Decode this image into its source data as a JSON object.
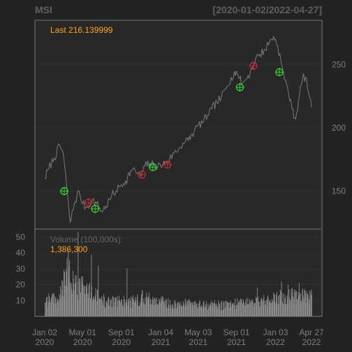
{
  "chart_data": [
    {
      "type": "line",
      "title": "MSI",
      "date_range": "[2020-01-02/2022-04-27]",
      "last_label": "Last 216.139999",
      "ylim": [
        120,
        285
      ],
      "y_ticks": [
        150,
        200,
        250
      ],
      "y_tick_labels": [
        "150",
        "200",
        "250"
      ],
      "x_ticks": [
        {
          "label": "Jan 02\n2020",
          "date": "2020-01-02"
        },
        {
          "label": "May 01\n2020",
          "date": "2020-05-01"
        },
        {
          "label": "Sep 01\n2020",
          "date": "2020-09-01"
        },
        {
          "label": "Jan 04\n2021",
          "date": "2021-01-04"
        },
        {
          "label": "May 03\n2021",
          "date": "2021-05-03"
        },
        {
          "label": "Sep 01\n2021",
          "date": "2021-09-01"
        },
        {
          "label": "Jan 03\n2022",
          "date": "2022-01-03"
        },
        {
          "label": "Apr 27\n2022",
          "date": "2022-04-27"
        }
      ],
      "series": [
        {
          "color": "#7a7a7a",
          "points": [
            [
              "2020-01-02",
              160
            ],
            [
              "2020-01-15",
              168
            ],
            [
              "2020-02-01",
              176
            ],
            [
              "2020-02-18",
              186
            ],
            [
              "2020-03-01",
              180
            ],
            [
              "2020-03-12",
              152
            ],
            [
              "2020-03-23",
              125
            ],
            [
              "2020-04-05",
              140
            ],
            [
              "2020-04-20",
              150
            ],
            [
              "2020-05-01",
              140
            ],
            [
              "2020-05-15",
              137
            ],
            [
              "2020-06-01",
              143
            ],
            [
              "2020-06-15",
              140
            ],
            [
              "2020-06-30",
              134
            ],
            [
              "2020-07-15",
              138
            ],
            [
              "2020-08-01",
              146
            ],
            [
              "2020-08-15",
              150
            ],
            [
              "2020-09-01",
              155
            ],
            [
              "2020-09-15",
              158
            ],
            [
              "2020-10-01",
              166
            ],
            [
              "2020-10-15",
              166
            ],
            [
              "2020-11-01",
              162
            ],
            [
              "2020-11-15",
              170
            ],
            [
              "2020-12-01",
              172
            ],
            [
              "2020-12-15",
              170
            ],
            [
              "2021-01-04",
              170
            ],
            [
              "2021-01-20",
              173
            ],
            [
              "2021-02-01",
              175
            ],
            [
              "2021-02-15",
              180
            ],
            [
              "2021-03-01",
              183
            ],
            [
              "2021-03-15",
              188
            ],
            [
              "2021-04-01",
              190
            ],
            [
              "2021-04-20",
              197
            ],
            [
              "2021-05-03",
              202
            ],
            [
              "2021-05-20",
              205
            ],
            [
              "2021-06-01",
              210
            ],
            [
              "2021-06-15",
              215
            ],
            [
              "2021-07-01",
              220
            ],
            [
              "2021-07-15",
              224
            ],
            [
              "2021-08-01",
              232
            ],
            [
              "2021-08-15",
              240
            ],
            [
              "2021-09-01",
              245
            ],
            [
              "2021-09-10",
              239
            ],
            [
              "2021-09-20",
              235
            ],
            [
              "2021-10-01",
              238
            ],
            [
              "2021-10-15",
              244
            ],
            [
              "2021-11-01",
              255
            ],
            [
              "2021-11-15",
              258
            ],
            [
              "2021-12-01",
              262
            ],
            [
              "2021-12-15",
              268
            ],
            [
              "2021-12-28",
              272
            ],
            [
              "2022-01-10",
              265
            ],
            [
              "2022-01-24",
              248
            ],
            [
              "2022-02-01",
              238
            ],
            [
              "2022-02-10",
              232
            ],
            [
              "2022-02-24",
              215
            ],
            [
              "2022-03-08",
              207
            ],
            [
              "2022-03-20",
              226
            ],
            [
              "2022-03-30",
              240
            ],
            [
              "2022-04-08",
              240
            ],
            [
              "2022-04-18",
              228
            ],
            [
              "2022-04-27",
              216.14
            ]
          ]
        }
      ],
      "markers": [
        {
          "date": "2020-03-04",
          "value": 150,
          "type": "buy",
          "color": "#2ee02e"
        },
        {
          "date": "2020-05-20",
          "value": 141,
          "type": "sell",
          "color": "#c82b2b"
        },
        {
          "date": "2020-06-10",
          "value": 136,
          "type": "buy",
          "color": "#2ee02e"
        },
        {
          "date": "2020-11-05",
          "value": 163,
          "type": "sell",
          "color": "#c82b2b"
        },
        {
          "date": "2020-12-10",
          "value": 169,
          "type": "buy",
          "color": "#2ee02e"
        },
        {
          "date": "2021-01-25",
          "value": 171,
          "type": "sell",
          "color": "#c82b2b"
        },
        {
          "date": "2021-09-12",
          "value": 232,
          "type": "buy",
          "color": "#2ee02e"
        },
        {
          "date": "2021-10-25",
          "value": 249,
          "type": "sell",
          "color": "#c82b2b"
        },
        {
          "date": "2022-01-15",
          "value": 244,
          "type": "buy",
          "color": "#2ee02e"
        }
      ]
    },
    {
      "type": "bar",
      "label": "Volume (100,000s):",
      "last_value": "1,386,300",
      "unit": "100,000s",
      "ylim": [
        0,
        55
      ],
      "y_ticks": [
        10,
        20,
        30,
        40,
        50
      ],
      "y_tick_labels": [
        "10",
        "20",
        "30",
        "40",
        "50"
      ],
      "bar_color": "#8d8d8d",
      "volume_anchors": [
        [
          "2020-01-02",
          11
        ],
        [
          "2020-02-15",
          10
        ],
        [
          "2020-03-01",
          20
        ],
        [
          "2020-03-20",
          25
        ],
        [
          "2020-04-20",
          17
        ],
        [
          "2020-05-01",
          20
        ],
        [
          "2020-05-20",
          15
        ],
        [
          "2020-06-15",
          12
        ],
        [
          "2020-07-15",
          9
        ],
        [
          "2020-09-01",
          9
        ],
        [
          "2020-10-01",
          9
        ],
        [
          "2020-11-10",
          12
        ],
        [
          "2021-01-04",
          9
        ],
        [
          "2021-02-01",
          8
        ],
        [
          "2021-03-01",
          8
        ],
        [
          "2021-06-01",
          7
        ],
        [
          "2021-08-01",
          7
        ],
        [
          "2021-09-01",
          8
        ],
        [
          "2021-11-01",
          9
        ],
        [
          "2022-01-03",
          11
        ],
        [
          "2022-02-10",
          13
        ],
        [
          "2022-04-27",
          12
        ]
      ],
      "volume_spikes": [
        [
          "2020-03-12",
          37
        ],
        [
          "2020-03-16",
          42
        ],
        [
          "2020-04-16",
          53
        ],
        [
          "2020-05-28",
          39
        ],
        [
          "2020-06-19",
          32
        ],
        [
          "2020-09-18",
          30
        ],
        [
          "2021-11-05",
          18
        ],
        [
          "2022-01-21",
          22
        ],
        [
          "2022-02-11",
          20
        ],
        [
          "2022-03-18",
          21
        ],
        [
          "2022-04-27",
          13.86
        ]
      ]
    }
  ]
}
